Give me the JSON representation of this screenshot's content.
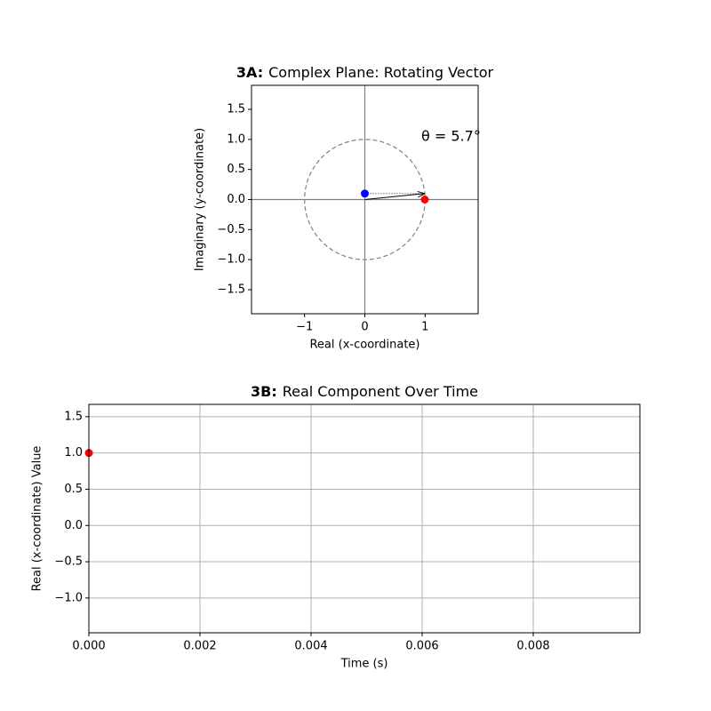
{
  "chart_data": [
    {
      "type": "vector",
      "title_prefix": "3A:",
      "title": "Complex Plane: Rotating Vector",
      "xlabel": "Real (x-coordinate)",
      "ylabel": "Imaginary (y-coordinate)",
      "xlim": [
        -1.88,
        1.88
      ],
      "ylim": [
        -1.9,
        1.9
      ],
      "xticks": [
        {
          "value": -1,
          "label": "−1"
        },
        0,
        1
      ],
      "yticks": [
        {
          "value": -1.5,
          "label": "−1.5"
        },
        {
          "value": -1.0,
          "label": "−1.0"
        },
        {
          "value": -0.5,
          "label": "−0.5"
        },
        {
          "value": 0.0,
          "label": "0.0"
        },
        0.5,
        {
          "value": 1.0,
          "label": "1.0"
        },
        1.5
      ],
      "circle_radius": 1,
      "vector": {
        "x": 0.995,
        "y": 0.099
      },
      "points": [
        {
          "x": 0.995,
          "y": 0,
          "color": "#ff0000"
        },
        {
          "x": 0,
          "y": 0.099,
          "color": "#0000ff"
        }
      ],
      "annotation": "θ = 5.7°",
      "annotation_color": "#800080"
    },
    {
      "type": "line",
      "title_prefix": "3B:",
      "title": "Real Component Over Time",
      "xlabel": "Time (s)",
      "ylabel": "Real (x-coordinate) Value",
      "xlim": [
        0,
        0.00992
      ],
      "ylim": [
        -1.48,
        1.67
      ],
      "xticks": [
        {
          "value": 0,
          "label": "0.000"
        },
        {
          "value": 0.002,
          "label": "0.002"
        },
        {
          "value": 0.004,
          "label": "0.004"
        },
        {
          "value": 0.006,
          "label": "0.006"
        },
        {
          "value": 0.008,
          "label": "0.008"
        }
      ],
      "yticks": [
        {
          "value": -1.0,
          "label": "−1.0"
        },
        {
          "value": -0.5,
          "label": "−0.5"
        },
        {
          "value": 0.0,
          "label": "0.0"
        },
        0.5,
        {
          "value": 1.0,
          "label": "1.0"
        },
        1.5
      ],
      "grid": true,
      "x": [
        0
      ],
      "series": [
        {
          "color": "#ff0000",
          "values": [
            1.0
          ]
        }
      ]
    }
  ]
}
